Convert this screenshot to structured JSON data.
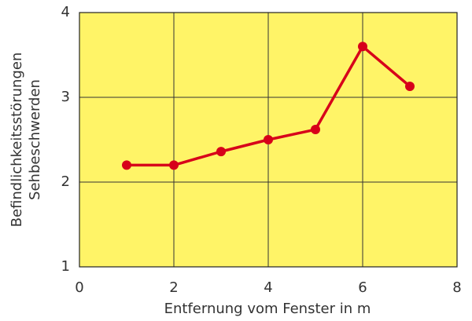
{
  "chart_data": {
    "type": "line",
    "xlabel": "Entfernung vom Fenster in m",
    "ylabel": [
      "Befindlichkeitsstörungen",
      "Sehbeschwerden"
    ],
    "x": [
      1,
      2,
      3,
      4,
      5,
      6,
      7
    ],
    "series": [
      {
        "color": "#d7001a",
        "values": [
          2.2,
          2.2,
          2.36,
          2.5,
          2.62,
          3.6,
          3.13
        ]
      }
    ],
    "xlim": [
      0,
      8
    ],
    "xticks": [
      0,
      2,
      4,
      6,
      8
    ],
    "ylim": [
      1,
      4
    ],
    "yticks": [
      1,
      2,
      3,
      4
    ],
    "grid": true,
    "background": "#fff467"
  }
}
